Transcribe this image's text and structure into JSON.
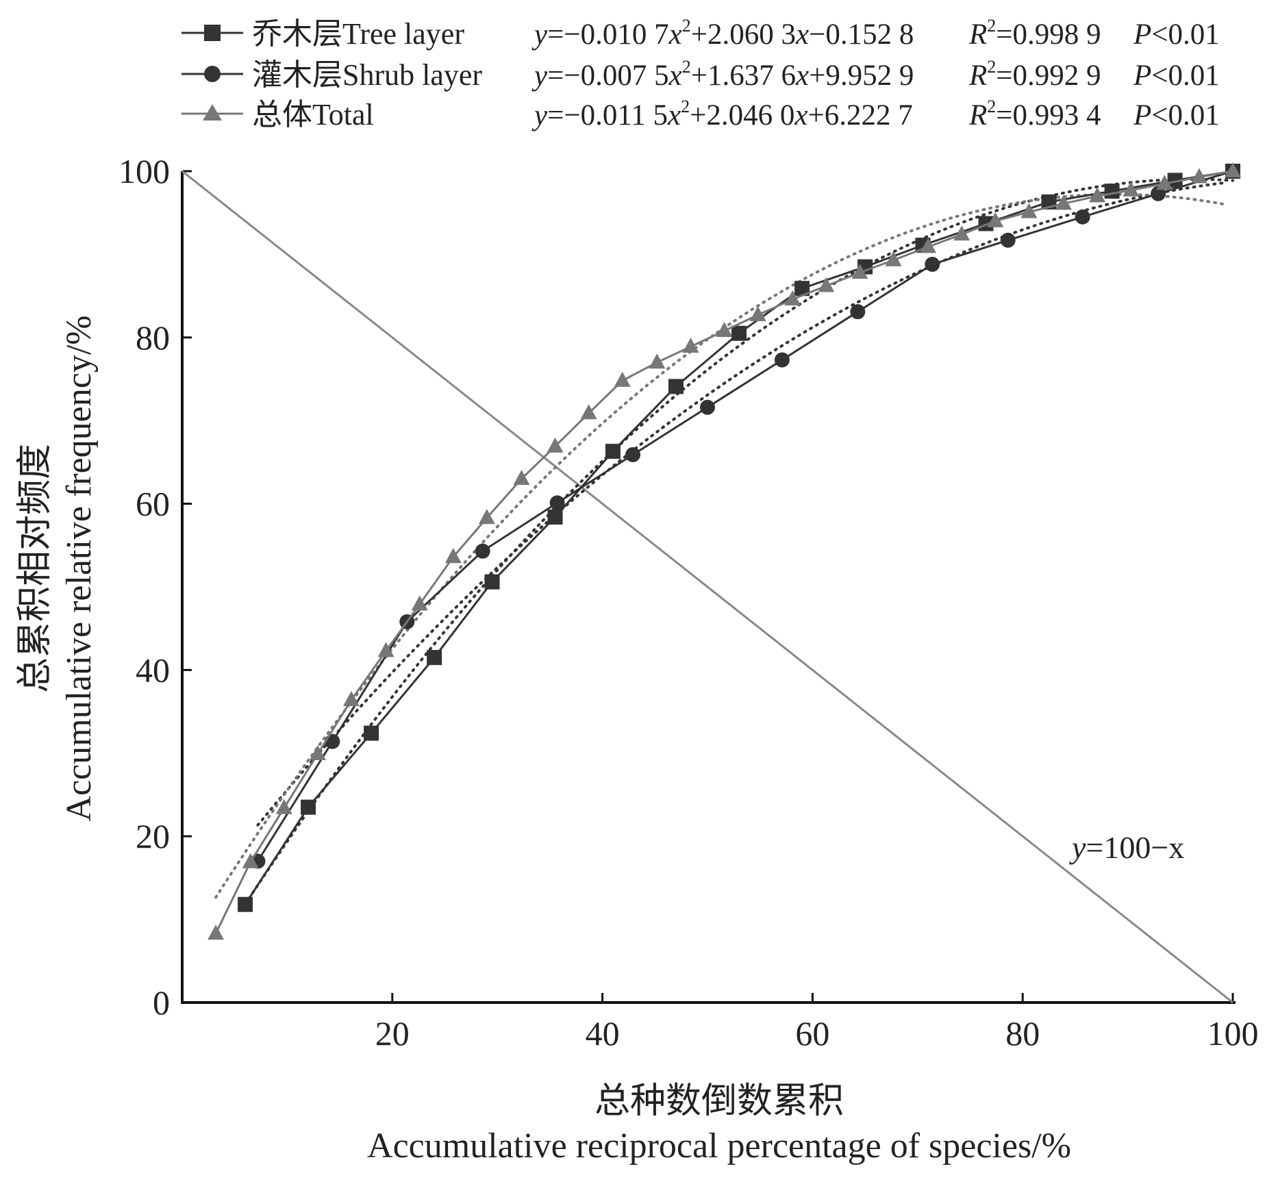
{
  "chart_data": {
    "type": "line",
    "xlabel_cn": "总种数倒数累积",
    "xlabel_en": "Accumulative reciprocal percentage of species/%",
    "ylabel_cn": "总累积相对频度",
    "ylabel_en": "Accumulative relative frequency/%",
    "xlim": [
      0,
      100
    ],
    "ylim": [
      0,
      100
    ],
    "xticks": [
      20,
      40,
      60,
      80,
      100
    ],
    "yticks": [
      0,
      20,
      40,
      60,
      80,
      100
    ],
    "reference_line": {
      "label_y": "y",
      "label_rest": "=100−x",
      "points": [
        [
          0,
          100
        ],
        [
          100,
          0
        ]
      ]
    },
    "series": [
      {
        "name": "乔木层Tree layer",
        "marker": "square",
        "color": "#333333",
        "x": [
          6,
          12,
          18,
          24,
          29.5,
          35.5,
          41,
          47,
          53,
          59,
          65,
          70.5,
          76.5,
          82.5,
          88.5,
          94.5,
          100
        ],
        "y": [
          11.8,
          23.5,
          32.4,
          41.5,
          50.6,
          58.4,
          66.3,
          74.1,
          80.5,
          85.9,
          88.5,
          91.1,
          93.7,
          96.3,
          97.6,
          98.9,
          100
        ],
        "fit": {
          "a": -0.0107,
          "b": 2.0603,
          "c": -0.1528,
          "x_range": [
            6,
            100
          ]
        },
        "equation": {
          "lead": "y",
          "part1": "=−0.010 7",
          "x1": "x",
          "sup": "2",
          "part2": "+2.060 3",
          "x2": "x",
          "part3": "−0.152 8",
          "r": "R",
          "r_sup": "2",
          "r_val": "=0.998 9",
          "p": "P",
          "p_val": "<0.01"
        }
      },
      {
        "name": "灌木层Shrub layer",
        "marker": "circle",
        "color": "#333333",
        "x": [
          7.2,
          14.3,
          21.4,
          28.6,
          35.7,
          42.9,
          50,
          57.1,
          64.3,
          71.4,
          78.6,
          85.7,
          92.9,
          100
        ],
        "y": [
          17,
          31.4,
          45.8,
          54.3,
          60.1,
          65.9,
          71.6,
          77.3,
          83.1,
          88.8,
          91.7,
          94.5,
          97.3,
          100
        ],
        "fit": {
          "a": -0.0075,
          "b": 1.6376,
          "c": 9.9529,
          "x_range": [
            7.2,
            100
          ]
        },
        "equation": {
          "lead": "y",
          "part1": "=−0.007 5",
          "x1": "x",
          "sup": "2",
          "part2": "+1.637 6",
          "x2": "x",
          "part3": "+9.952 9",
          "r": "R",
          "r_sup": "2",
          "r_val": "=0.992 9",
          "p": "P",
          "p_val": "<0.01"
        }
      },
      {
        "name": "总体Total",
        "marker": "triangle",
        "color": "#777777",
        "x": [
          3.2,
          6.5,
          9.7,
          12.9,
          16.1,
          19.4,
          22.6,
          25.8,
          29,
          32.3,
          35.5,
          38.7,
          41.9,
          45.2,
          48.4,
          51.6,
          54.8,
          58.1,
          61.3,
          64.5,
          67.7,
          71,
          74.2,
          77.4,
          80.6,
          83.9,
          87.1,
          90.3,
          93.5,
          96.8,
          100
        ],
        "y": [
          8.3,
          16.9,
          23.4,
          29.9,
          36.4,
          42.3,
          47.9,
          53.6,
          58.3,
          63,
          66.9,
          70.9,
          74.8,
          77,
          78.9,
          80.8,
          82.7,
          84.6,
          86.2,
          87.8,
          89.3,
          90.9,
          92.4,
          94,
          95.1,
          96.1,
          97,
          97.7,
          98.5,
          99.3,
          100
        ],
        "fit": {
          "a": -0.0115,
          "b": 2.046,
          "c": 6.2227,
          "x_range": [
            3.2,
            100
          ]
        },
        "equation": {
          "lead": "y",
          "part1": "=−0.011 5",
          "x1": "x",
          "sup": "2",
          "part2": "+2.046 0",
          "x2": "x",
          "part3": "+6.222 7",
          "r": "R",
          "r_sup": "2",
          "r_val": "=0.993 4",
          "p": "P",
          "p_val": "<0.01"
        }
      }
    ]
  }
}
